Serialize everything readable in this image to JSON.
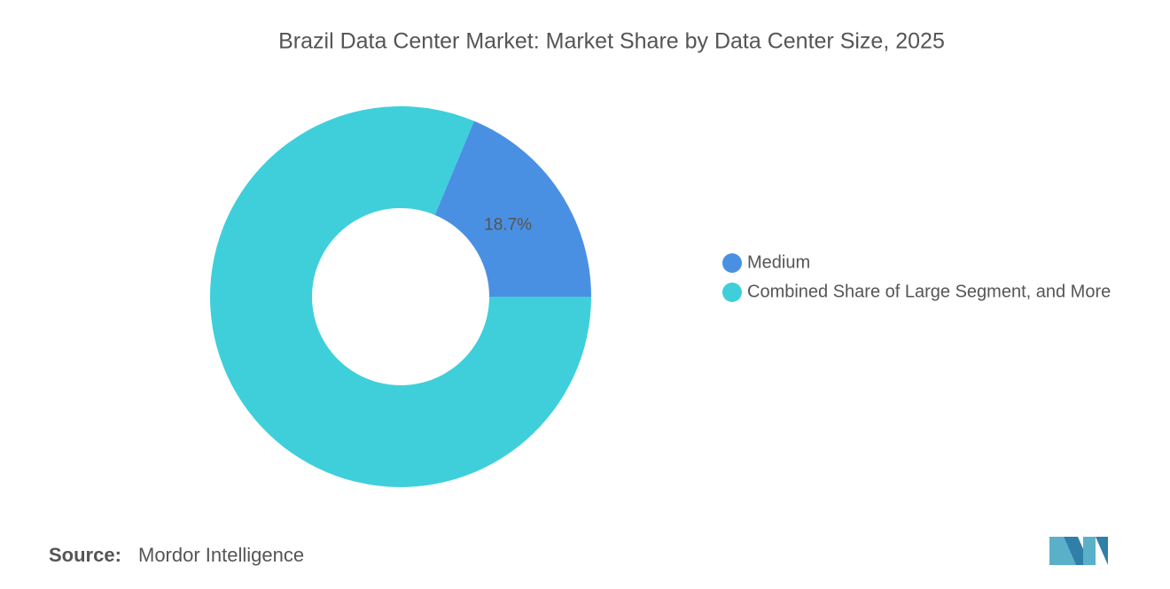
{
  "chart_data": {
    "type": "donut",
    "title": "Brazil Data Center Market: Market Share by Data Center Size, 2025",
    "categories": [
      "Medium",
      "Combined Share of Large Segment, and More"
    ],
    "values": [
      18.7,
      81.3
    ],
    "value_labels": [
      "18.7%",
      null
    ],
    "colors": [
      "#4a90e2",
      "#3fcfdb"
    ],
    "legend": "right",
    "source_label": "Source:",
    "source": "Mordor Intelligence"
  }
}
